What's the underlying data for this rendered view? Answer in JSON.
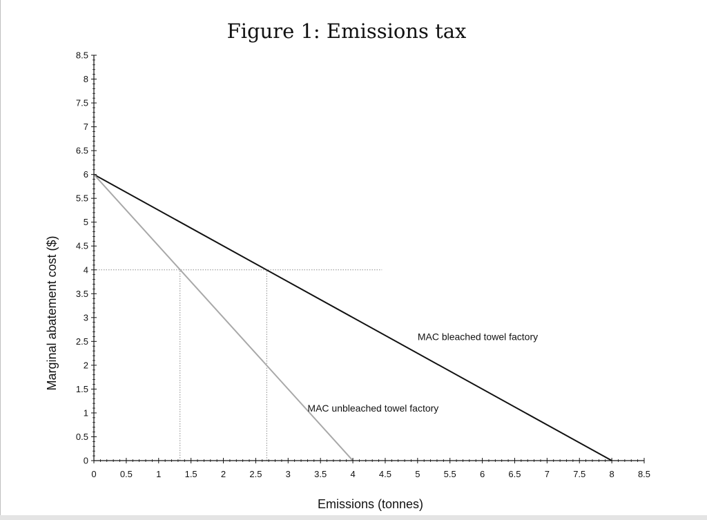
{
  "chart_data": {
    "type": "line",
    "title": "Figure 1: Emissions tax",
    "xlabel": "Emissions (tonnes)",
    "ylabel": "Marginal abatement cost ($)",
    "xlim": [
      0,
      8.5
    ],
    "ylim": [
      0,
      8.5
    ],
    "x_ticks": [
      "0",
      "0.5",
      "1",
      "1.5",
      "2",
      "2.5",
      "3",
      "3.5",
      "4",
      "4.5",
      "5",
      "5.5",
      "6",
      "6.5",
      "7",
      "7.5",
      "8",
      "8.5"
    ],
    "y_ticks": [
      "0",
      "0.5",
      "1",
      "1.5",
      "2",
      "2.5",
      "3",
      "3.5",
      "4",
      "4.5",
      "5",
      "5.5",
      "6",
      "6.5",
      "7",
      "7.5",
      "8",
      "8.5"
    ],
    "grid": false,
    "series": [
      {
        "name": "MAC bleached towel factory",
        "x": [
          0,
          8
        ],
        "y": [
          6,
          0
        ],
        "color": "#111111",
        "label_at": [
          5.0,
          2.6
        ]
      },
      {
        "name": "MAC unbleached towel factory",
        "x": [
          0,
          4
        ],
        "y": [
          6,
          0
        ],
        "color": "#a8a8a8",
        "label_at": [
          3.3,
          1.1
        ]
      }
    ],
    "reference_lines": [
      {
        "kind": "horizontal",
        "y": 4,
        "x_from": 0,
        "x_to": 4.45
      },
      {
        "kind": "vertical",
        "x": 1.33,
        "y_from": 0,
        "y_to": 4
      },
      {
        "kind": "vertical",
        "x": 2.67,
        "y_from": 0,
        "y_to": 4
      }
    ]
  }
}
